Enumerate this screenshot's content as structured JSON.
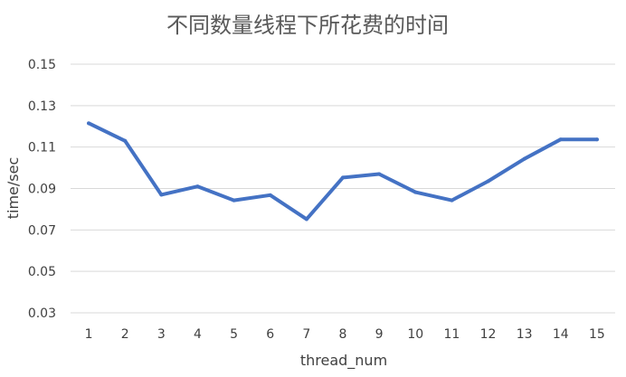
{
  "chart_data": {
    "type": "line",
    "title": "不同数量线程下所花费的时间",
    "xlabel": "thread_num",
    "ylabel": "time/sec",
    "categories": [
      "1",
      "2",
      "3",
      "4",
      "5",
      "6",
      "7",
      "8",
      "9",
      "10",
      "11",
      "12",
      "13",
      "14",
      "15"
    ],
    "series": [
      {
        "values": [
          0.1215,
          0.113,
          0.087,
          0.091,
          0.0843,
          0.0868,
          0.0752,
          0.0953,
          0.097,
          0.0882,
          0.0843,
          0.0935,
          0.1043,
          0.1137,
          0.1137
        ]
      }
    ],
    "yticks": [
      "0.03",
      "0.05",
      "0.07",
      "0.09",
      "0.11",
      "0.13",
      "0.15"
    ],
    "ylim": [
      0.03,
      0.15
    ],
    "grid": true,
    "legend": "none",
    "color": "#4472c4"
  }
}
